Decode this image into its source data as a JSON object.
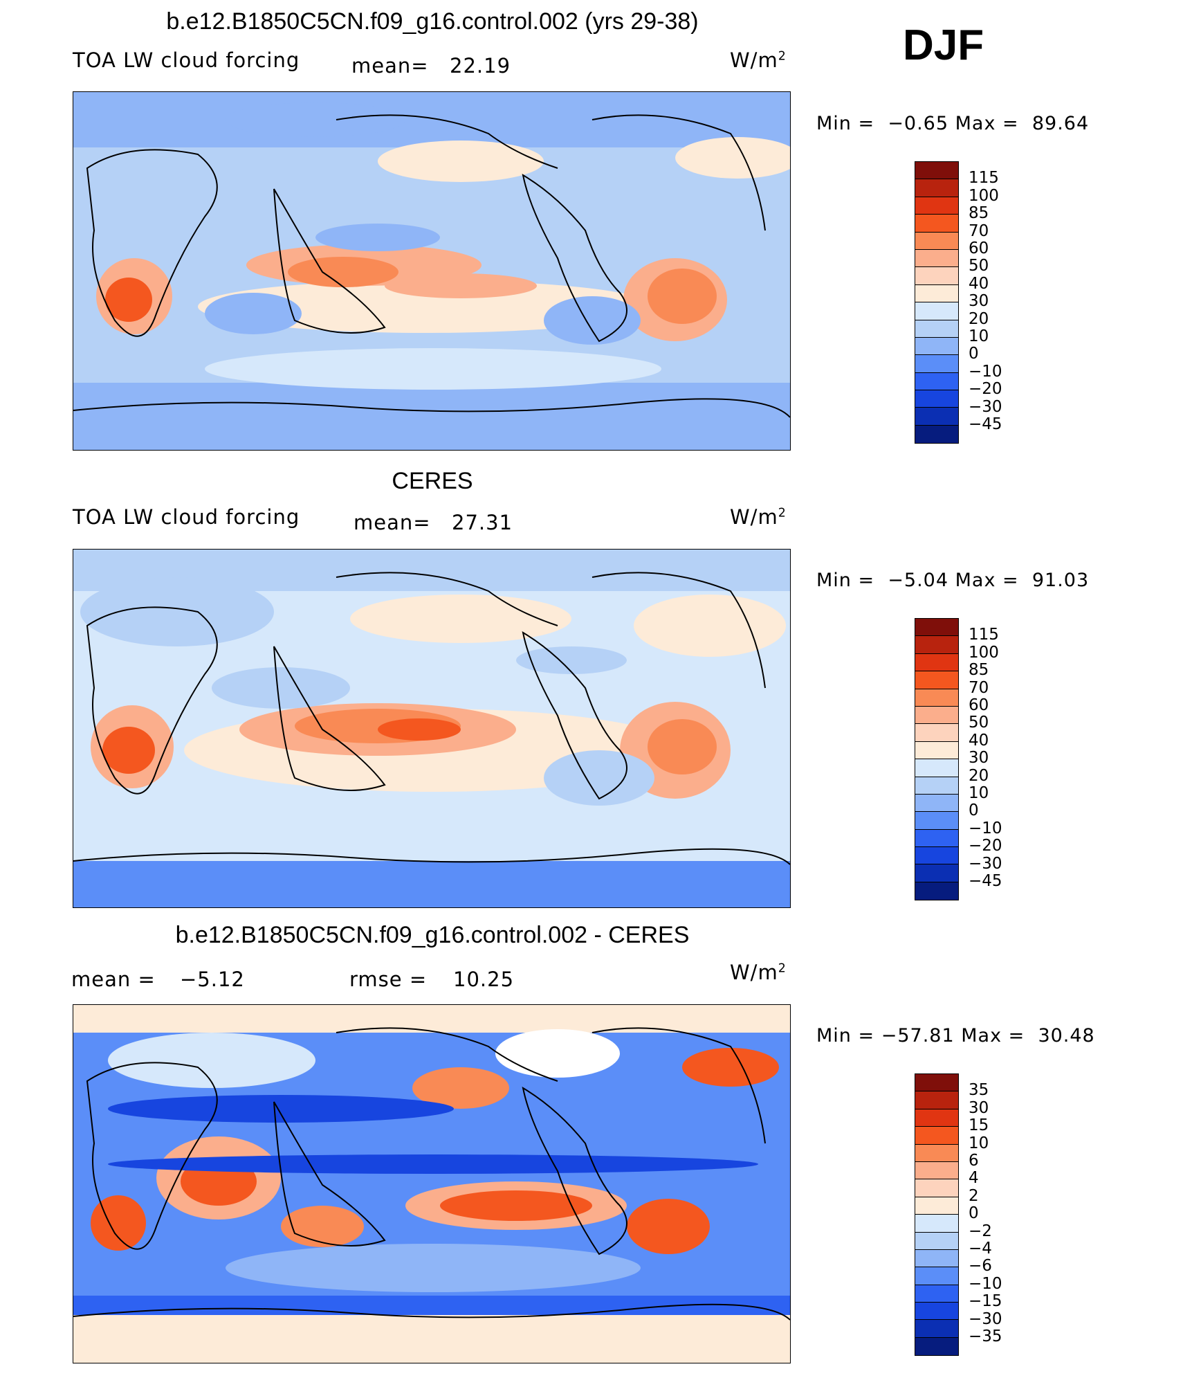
{
  "season": "DJF",
  "panels": [
    {
      "id": "model",
      "title": "b.e12.B1850C5CN.f09_g16.control.002 (yrs 29-38)",
      "variable": "TOA LW cloud forcing",
      "stat1_label": "mean=",
      "stat1_value": "22.19",
      "stat2_label": "",
      "stat2_value": "",
      "units_base": "W/m",
      "units_exp": "2",
      "min_label": "Min =",
      "min_value": "−0.65",
      "max_label": "Max =",
      "max_value": "89.64",
      "colorbar_levels": [
        "115",
        "100",
        "85",
        "70",
        "60",
        "50",
        "40",
        "30",
        "20",
        "10",
        "0",
        "−10",
        "−20",
        "−30",
        "−45"
      ],
      "colorbar_colors": [
        "#7f0f0a",
        "#b8230e",
        "#e03512",
        "#f4571f",
        "#f98a55",
        "#fbae8c",
        "#fdd3bd",
        "#fdebd8",
        "#d6e8fb",
        "#b5d1f6",
        "#8fb5f7",
        "#5b8ef8",
        "#2e62f2",
        "#1745df",
        "#0b2fb3",
        "#061c7e"
      ]
    },
    {
      "id": "obs",
      "title": "CERES",
      "variable": "TOA LW cloud forcing",
      "stat1_label": "mean=",
      "stat1_value": "27.31",
      "stat2_label": "",
      "stat2_value": "",
      "units_base": "W/m",
      "units_exp": "2",
      "min_label": "Min =",
      "min_value": "−5.04",
      "max_label": "Max =",
      "max_value": "91.03",
      "colorbar_levels": [
        "115",
        "100",
        "85",
        "70",
        "60",
        "50",
        "40",
        "30",
        "20",
        "10",
        "0",
        "−10",
        "−20",
        "−30",
        "−45"
      ],
      "colorbar_colors": [
        "#7f0f0a",
        "#b8230e",
        "#e03512",
        "#f4571f",
        "#f98a55",
        "#fbae8c",
        "#fdd3bd",
        "#fdebd8",
        "#d6e8fb",
        "#b5d1f6",
        "#8fb5f7",
        "#5b8ef8",
        "#2e62f2",
        "#1745df",
        "#0b2fb3",
        "#061c7e"
      ]
    },
    {
      "id": "diff",
      "title": "b.e12.B1850C5CN.f09_g16.control.002 - CERES",
      "variable": "",
      "stat1_label": "mean =",
      "stat1_value": "−5.12",
      "stat2_label": "rmse =",
      "stat2_value": "10.25",
      "units_base": "W/m",
      "units_exp": "2",
      "min_label": "Min =",
      "min_value": "−57.81",
      "max_label": "Max =",
      "max_value": "30.48",
      "colorbar_levels": [
        "35",
        "30",
        "15",
        "10",
        "6",
        "4",
        "2",
        "0",
        "−2",
        "−4",
        "−6",
        "−10",
        "−15",
        "−30",
        "−35"
      ],
      "colorbar_colors": [
        "#7f0f0a",
        "#b8230e",
        "#e03512",
        "#f4571f",
        "#f98a55",
        "#fbae8c",
        "#fdd3bd",
        "#fdebd8",
        "#d6e8fb",
        "#b5d1f6",
        "#8fb5f7",
        "#5b8ef8",
        "#2e62f2",
        "#1745df",
        "#0b2fb3",
        "#061c7e"
      ]
    }
  ]
}
